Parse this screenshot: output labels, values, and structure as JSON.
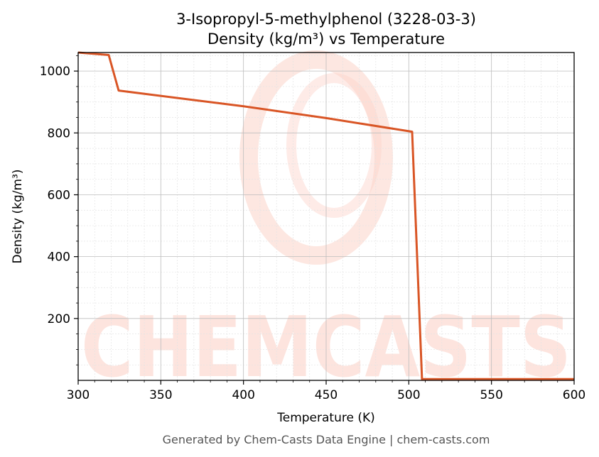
{
  "chart_data": {
    "type": "line",
    "title_line1": "3-Isopropyl-5-methylphenol (3228-03-3)",
    "title_line2": "Density (kg/m³) vs Temperature",
    "xlabel": "Temperature (K)",
    "ylabel": "Density (kg/m³)",
    "xlim": [
      300,
      600
    ],
    "ylim": [
      0,
      1060
    ],
    "x_ticks": [
      300,
      350,
      400,
      450,
      500,
      550,
      600
    ],
    "y_ticks": [
      200,
      400,
      600,
      800,
      1000
    ],
    "grid": true,
    "series": [
      {
        "color": "#d95525",
        "x": [
          300,
          318.5,
          324.5,
          400,
          450,
          502,
          508,
          600
        ],
        "values": [
          1060,
          1052,
          937,
          886,
          848,
          804,
          4,
          4
        ]
      }
    ]
  },
  "watermark": {
    "text": "CHEMCASTS",
    "color": "#fcd3c9"
  },
  "footer": {
    "text": "Generated by Chem-Casts Data Engine | chem-casts.com"
  }
}
